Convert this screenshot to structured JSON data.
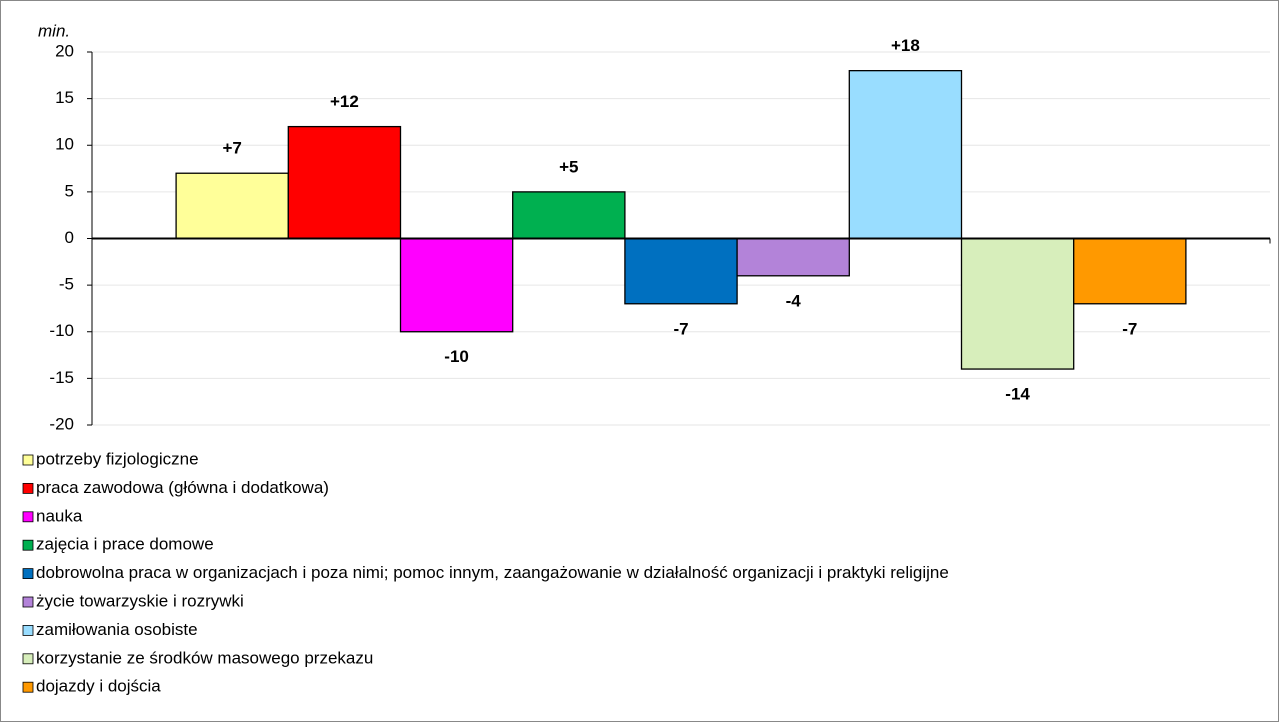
{
  "chart_data": {
    "type": "bar",
    "y_label": "min.",
    "categories": [
      null
    ],
    "ylim": [
      -20,
      20
    ],
    "yticks": [
      20,
      15,
      10,
      5,
      0,
      -5,
      -10,
      -15,
      -20
    ],
    "grid": true,
    "legend": "bottom",
    "series": [
      {
        "name": "potrzeby fizjologiczne",
        "color": "#ffff99",
        "values": [
          7
        ],
        "value_labels": [
          "+7"
        ]
      },
      {
        "name": "praca zawodowa (główna i dodatkowa)",
        "color": "#ff0000",
        "values": [
          12
        ],
        "value_labels": [
          "+12"
        ]
      },
      {
        "name": "nauka",
        "color": "#ff00ff",
        "values": [
          -10
        ]
      },
      {
        "name": "zajęcia i prace domowe",
        "color": "#00b050",
        "values": [
          5
        ],
        "value_labels": [
          "+5"
        ]
      },
      {
        "name": "dobrowolna praca w organizacjach i poza nimi; pomoc innym, zaangażowanie w działalność organizacji i praktyki religijne",
        "color": "#0070c0",
        "values": [
          -7
        ]
      },
      {
        "name": "życie towarzyskie i rozrywki",
        "color": "#b383d9",
        "values": [
          -4
        ]
      },
      {
        "name": "zamiłowania osobiste",
        "color": "#99ddff",
        "values": [
          18
        ],
        "value_labels": [
          "+18"
        ]
      },
      {
        "name": "korzystanie ze środków masowego przekazu",
        "color": "#d7eebb",
        "values": [
          -14
        ]
      },
      {
        "name": "dojazdy i dojścia",
        "color": "#ff9900",
        "values": [
          -7
        ]
      }
    ]
  }
}
